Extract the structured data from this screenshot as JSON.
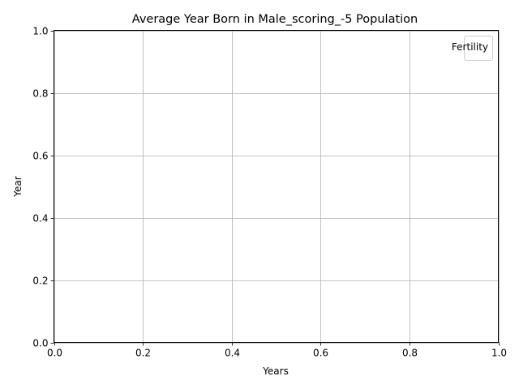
{
  "chart_data": {
    "type": "line",
    "title": "Average Year Born in Male_scoring_-5 Population",
    "xlabel": "Years",
    "ylabel": "Year",
    "xlim": [
      0.0,
      1.0
    ],
    "ylim": [
      0.0,
      1.0
    ],
    "xticks": [
      "0.0",
      "0.2",
      "0.4",
      "0.6",
      "0.8",
      "1.0"
    ],
    "yticks": [
      "0.0",
      "0.2",
      "0.4",
      "0.6",
      "0.8",
      "1.0"
    ],
    "grid": true,
    "legend": {
      "title": "Fertility",
      "placement": "top-right",
      "entries": []
    },
    "series": []
  },
  "colors": {
    "grid": "#b0b0b0",
    "axes": "#000000",
    "background": "#ffffff"
  }
}
